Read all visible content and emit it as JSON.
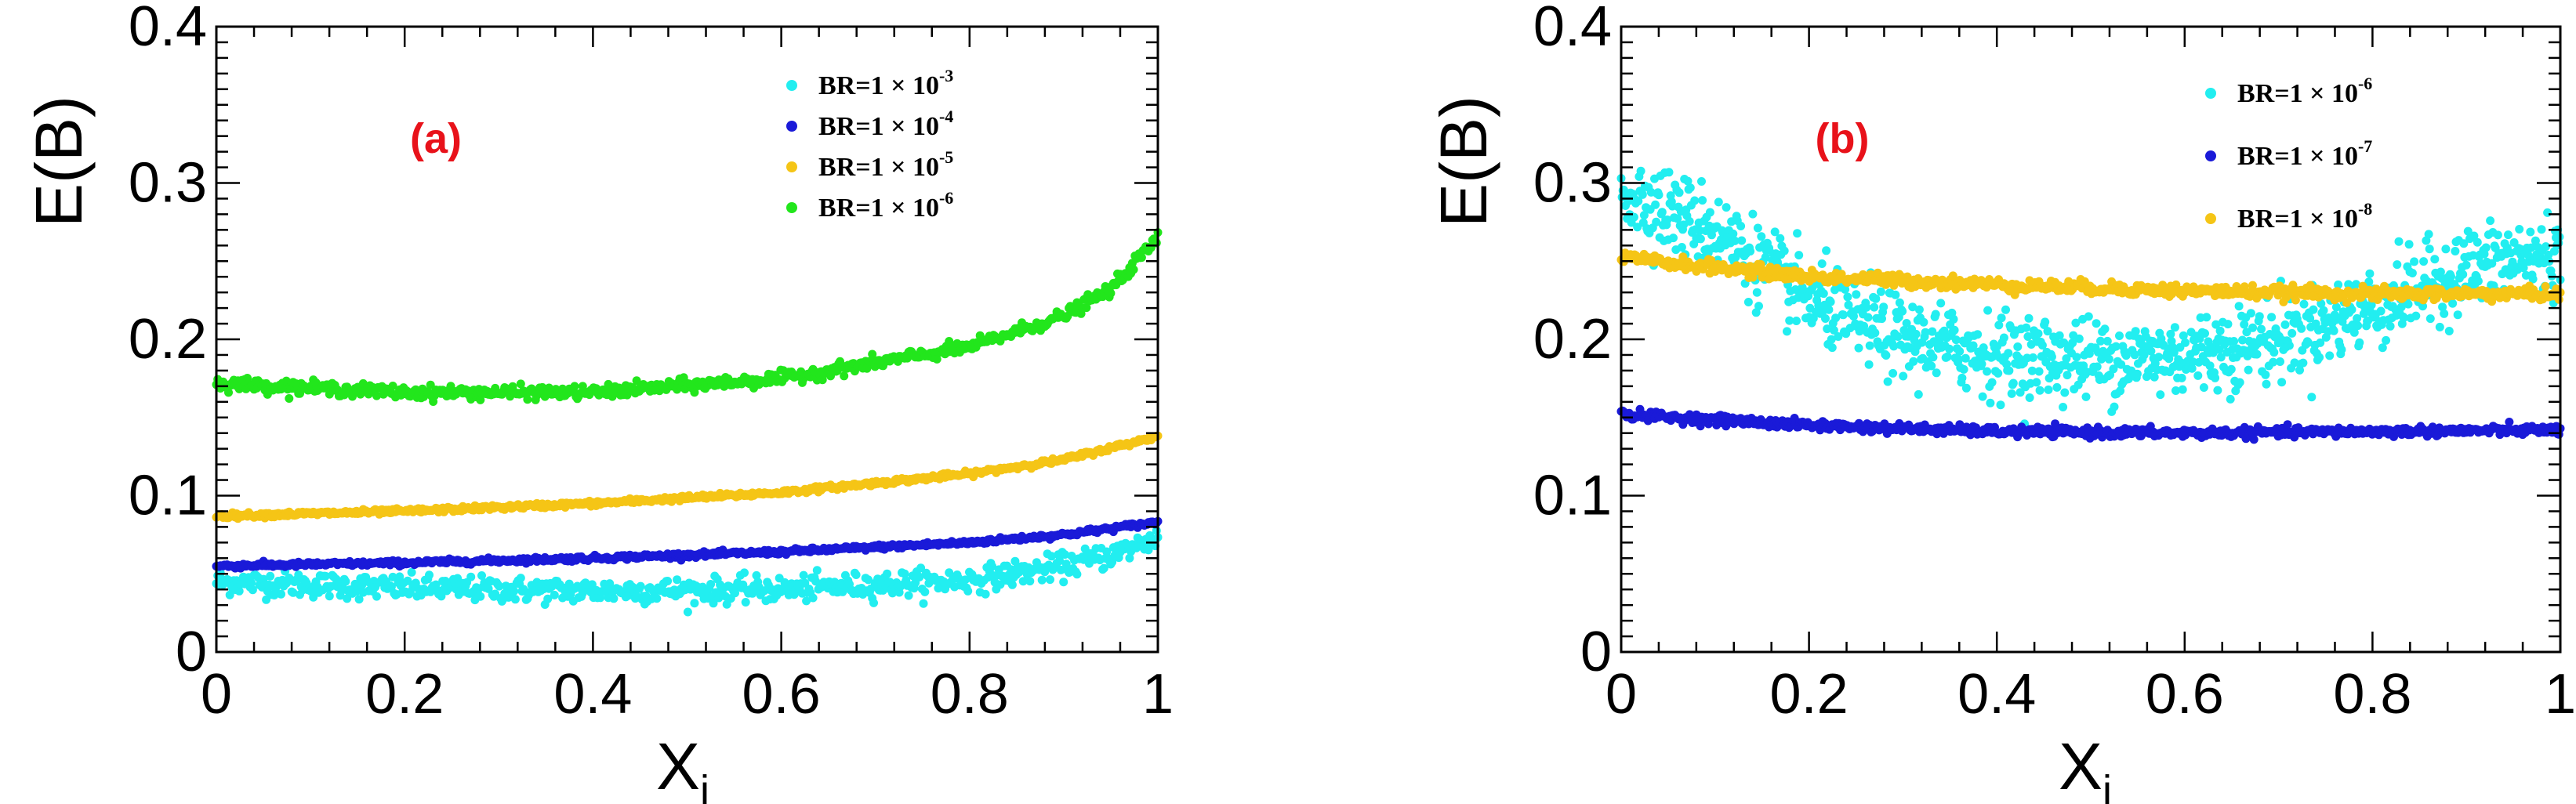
{
  "colors": {
    "cyan": "#22eef0",
    "blue": "#1a1ad8",
    "yellow": "#f5c516",
    "green": "#22e61c",
    "tag_red": "#e8121a"
  },
  "chart_data": [
    {
      "type": "scatter",
      "panel_label": "(a)",
      "xlabel": "X",
      "xlabel_sub": "i",
      "ylabel": "E(B)",
      "xlim": [
        0,
        1
      ],
      "ylim": [
        0,
        0.4
      ],
      "x_ticks": [
        "0",
        "0.2",
        "0.4",
        "0.6",
        "0.8",
        "1"
      ],
      "y_ticks": [
        "0",
        "0.1",
        "0.2",
        "0.3",
        "0.4"
      ],
      "legend_position": "top-right",
      "legend": [
        {
          "base": "BR=1  × 10",
          "exp": "-3",
          "color": "cyan"
        },
        {
          "base": "BR=1  × 10",
          "exp": "-4",
          "color": "blue"
        },
        {
          "base": "BR=1  × 10",
          "exp": "-5",
          "color": "yellow"
        },
        {
          "base": "BR=1  × 10",
          "exp": "-6",
          "color": "green"
        }
      ],
      "series": [
        {
          "legend_index": 0,
          "color": "cyan",
          "x": [
            0,
            0.2,
            0.4,
            0.6,
            0.8,
            0.9,
            0.95,
            1.0
          ],
          "y": [
            0.045,
            0.041,
            0.039,
            0.04,
            0.046,
            0.055,
            0.062,
            0.073
          ],
          "noise": 0.004,
          "count": 700
        },
        {
          "legend_index": 1,
          "color": "blue",
          "x": [
            0,
            0.2,
            0.4,
            0.6,
            0.8,
            0.9,
            1.0
          ],
          "y": [
            0.055,
            0.057,
            0.06,
            0.064,
            0.07,
            0.075,
            0.083
          ],
          "noise": 0.0008,
          "count": 700
        },
        {
          "legend_index": 2,
          "color": "yellow",
          "x": [
            0,
            0.2,
            0.4,
            0.6,
            0.8,
            0.9,
            1.0
          ],
          "y": [
            0.087,
            0.09,
            0.095,
            0.102,
            0.114,
            0.123,
            0.138
          ],
          "noise": 0.0008,
          "count": 700
        },
        {
          "legend_index": 3,
          "color": "green",
          "x": [
            0,
            0.2,
            0.4,
            0.6,
            0.8,
            0.9,
            0.95,
            1.0
          ],
          "y": [
            0.172,
            0.166,
            0.166,
            0.175,
            0.195,
            0.215,
            0.232,
            0.265
          ],
          "noise": 0.002,
          "count": 700
        }
      ]
    },
    {
      "type": "scatter",
      "panel_label": "(b)",
      "xlabel": "X",
      "xlabel_sub": "i",
      "ylabel": "E(B)",
      "xlim": [
        0,
        1
      ],
      "ylim": [
        0,
        0.4
      ],
      "x_ticks": [
        "0",
        "0.2",
        "0.4",
        "0.6",
        "0.8",
        "1"
      ],
      "y_ticks": [
        "0",
        "0.1",
        "0.2",
        "0.3",
        "0.4"
      ],
      "legend_position": "top-right",
      "legend": [
        {
          "base": "BR=1  × 10",
          "exp": "-6",
          "color": "cyan"
        },
        {
          "base": "BR=1  × 10",
          "exp": "-7",
          "color": "blue"
        },
        {
          "base": "BR=1  × 10",
          "exp": "-8",
          "color": "yellow"
        }
      ],
      "series": [
        {
          "legend_index": 0,
          "color": "cyan",
          "x": [
            0,
            0.1,
            0.2,
            0.3,
            0.4,
            0.5,
            0.6,
            0.7,
            0.8,
            0.9,
            1.0
          ],
          "y": [
            0.295,
            0.27,
            0.225,
            0.2,
            0.19,
            0.187,
            0.19,
            0.2,
            0.22,
            0.245,
            0.255
          ],
          "noise": 0.013,
          "count": 1100
        },
        {
          "legend_index": 1,
          "color": "blue",
          "x": [
            0,
            0.2,
            0.4,
            0.6,
            0.8,
            1.0
          ],
          "y": [
            0.152,
            0.145,
            0.141,
            0.14,
            0.141,
            0.142
          ],
          "noise": 0.0015,
          "count": 700
        },
        {
          "legend_index": 2,
          "color": "yellow",
          "x": [
            0,
            0.2,
            0.4,
            0.6,
            0.8,
            1.0
          ],
          "y": [
            0.252,
            0.24,
            0.235,
            0.231,
            0.229,
            0.229
          ],
          "noise": 0.002,
          "count": 700
        }
      ]
    }
  ]
}
